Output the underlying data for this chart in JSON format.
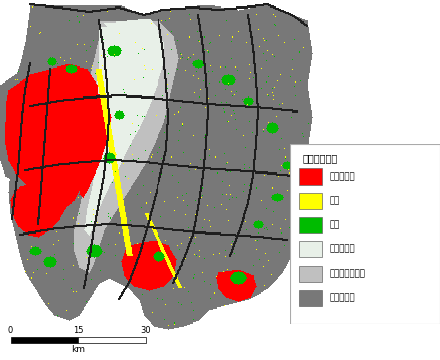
{
  "legend_title": "液状化危険度",
  "legend_items": [
    {
      "label": "極めて高い",
      "color": "#FF0000"
    },
    {
      "label": "高い",
      "color": "#FFFF00"
    },
    {
      "label": "低い",
      "color": "#00BB00"
    },
    {
      "label": "極めて低い",
      "color": "#E8F0E8"
    },
    {
      "label": "計算対象層なし",
      "color": "#C0C0C0"
    },
    {
      "label": "計算対象外",
      "color": "#787878"
    }
  ],
  "scale_bar": {
    "values": [
      "0",
      "15",
      "30"
    ],
    "unit": "km"
  },
  "bg_color": "#FFFFFF",
  "outside_color": "#FFFFFF",
  "figsize": [
    4.4,
    3.6
  ],
  "dpi": 100
}
